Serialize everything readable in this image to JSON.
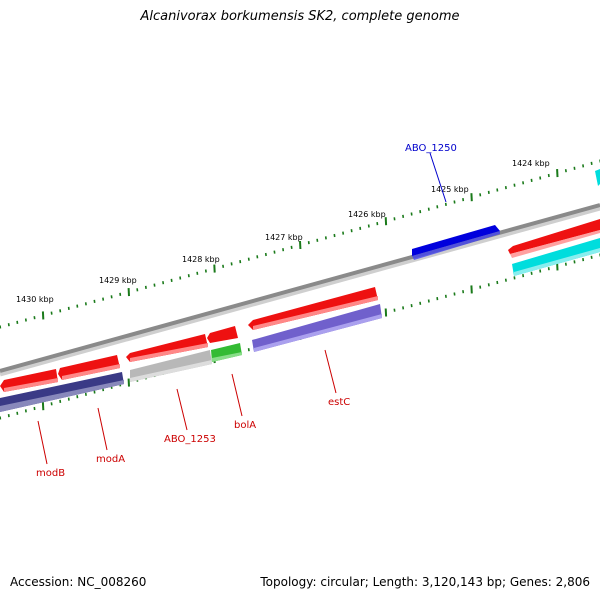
{
  "title": "Alcanivorax borkumensis SK2, complete genome",
  "accession": "Accession: NC_008260",
  "summary": "Topology: circular; Length: 3,120,143 bp; Genes: 2,806",
  "colors": {
    "backbone": "#8a8a8a",
    "ticks": "#1a7a1a",
    "red": "#ee1111",
    "dark_blue": "#3a3a86",
    "gray": "#b8b8b8",
    "green": "#33bb33",
    "lavender": "#7060cc",
    "blue": "#0000dd",
    "cyan": "#00dddd",
    "label_red": "#cc0000",
    "label_blue": "#0000cc"
  },
  "ticks": [
    {
      "label": "1424 kbp"
    },
    {
      "label": "1425 kbp"
    },
    {
      "label": "1426 kbp"
    },
    {
      "label": "1427 kbp"
    },
    {
      "label": "1428 kbp"
    },
    {
      "label": "1429 kbp"
    },
    {
      "label": "1430 kbp"
    }
  ],
  "gene_labels": [
    {
      "text": "modB",
      "color": "label_red"
    },
    {
      "text": "modA",
      "color": "label_red"
    },
    {
      "text": "ABO_1253",
      "color": "label_red"
    },
    {
      "text": "bolA",
      "color": "label_red"
    },
    {
      "text": "estC",
      "color": "label_red"
    },
    {
      "text": "ABO_1250",
      "color": "label_blue"
    }
  ]
}
